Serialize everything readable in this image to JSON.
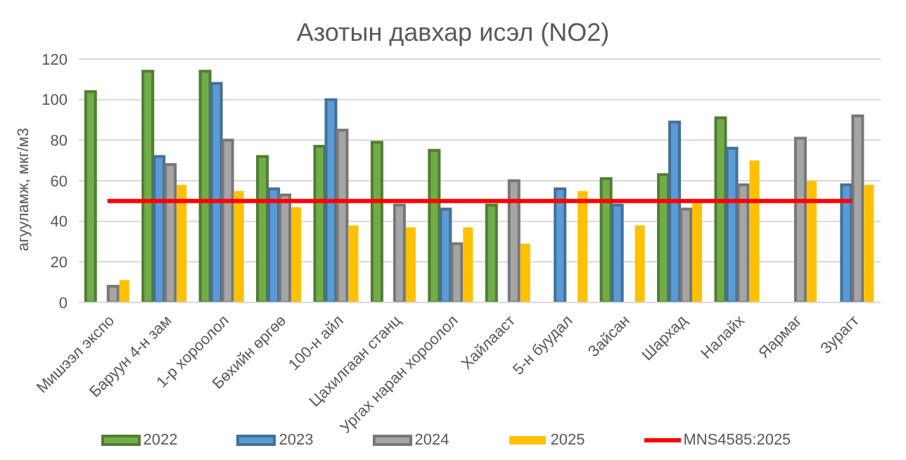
{
  "chart_data": {
    "type": "bar",
    "title": "Азотын давхар исэл (NO2)",
    "ylabel": "агууламж, мкг/м3",
    "categories": [
      "Мишээл экспо",
      "Баруун 4-н зам",
      "1-р хороолол",
      "Бөхийн өргөө",
      "100-н айл",
      "Цахилгаан станц",
      "Ургах наран хороолол",
      "Хайлааст",
      "5-н буудал",
      "Зайсан",
      "Шархад",
      "Налайх",
      "Яармаг",
      "Зурагт"
    ],
    "series": [
      {
        "name": "2022",
        "color": "#70ad47",
        "values": [
          104,
          114,
          114,
          72,
          77,
          79,
          75,
          48,
          null,
          61,
          63,
          91,
          null,
          null
        ]
      },
      {
        "name": "2023",
        "color": "#5b9bd5",
        "values": [
          null,
          72,
          108,
          56,
          100,
          null,
          46,
          null,
          56,
          48,
          89,
          76,
          null,
          58
        ]
      },
      {
        "name": "2024",
        "color": "#a5a5a5",
        "values": [
          8,
          68,
          80,
          53,
          85,
          48,
          29,
          60,
          null,
          null,
          46,
          58,
          81,
          92
        ]
      },
      {
        "name": "2025",
        "color": "#ffc000",
        "values": [
          11,
          58,
          55,
          47,
          38,
          37,
          37,
          29,
          55,
          38,
          49,
          70,
          60,
          58
        ]
      },
      {
        "name": "MNS4585:2025",
        "type": "line",
        "color": "#ff0000",
        "values": [
          50,
          50,
          50,
          50,
          50,
          50,
          50,
          50,
          50,
          50,
          50,
          50,
          50,
          50
        ]
      }
    ],
    "ylim": [
      0,
      120
    ],
    "yticks": [
      0,
      20,
      40,
      60,
      80,
      100,
      120
    ],
    "grid": "y",
    "legend": "bottom",
    "marker": "none"
  }
}
